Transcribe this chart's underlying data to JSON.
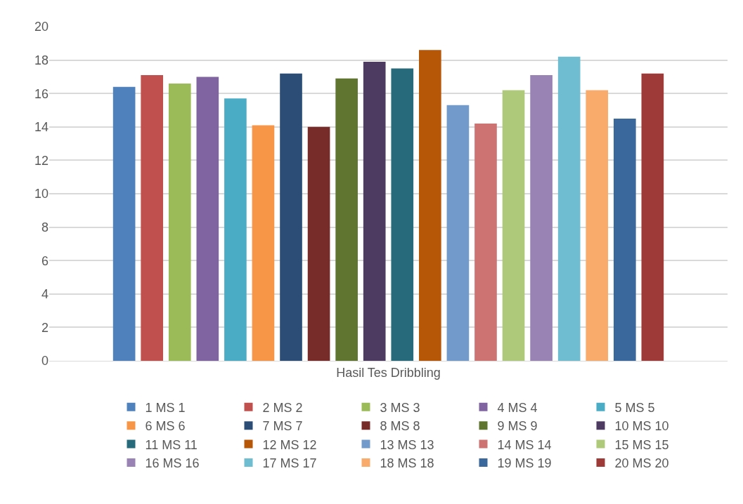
{
  "chart_data": {
    "type": "bar",
    "categories": [
      "Hasil Tes Dribbling"
    ],
    "series": [
      {
        "name": "1 MS 1",
        "color": "#4f81bd",
        "values": [
          16.4
        ]
      },
      {
        "name": "2 MS 2",
        "color": "#c0504d",
        "values": [
          17.1
        ]
      },
      {
        "name": "3 MS 3",
        "color": "#9bbb59",
        "values": [
          16.6
        ]
      },
      {
        "name": "4 MS 4",
        "color": "#8064a2",
        "values": [
          17.0
        ]
      },
      {
        "name": "5 MS 5",
        "color": "#4bacc6",
        "values": [
          15.7
        ]
      },
      {
        "name": "6 MS 6",
        "color": "#f79646",
        "values": [
          14.1
        ]
      },
      {
        "name": "7 MS 7",
        "color": "#2c4d75",
        "values": [
          17.2
        ]
      },
      {
        "name": "8 MS 8",
        "color": "#772c2a",
        "values": [
          14.0
        ]
      },
      {
        "name": "9 MS 9",
        "color": "#5f7530",
        "values": [
          16.9
        ]
      },
      {
        "name": "10 MS 10",
        "color": "#4d3b62",
        "values": [
          17.9
        ]
      },
      {
        "name": "11 MS 11",
        "color": "#276a7c",
        "values": [
          17.5
        ]
      },
      {
        "name": "12 MS 12",
        "color": "#b65708",
        "values": [
          18.6
        ]
      },
      {
        "name": "13 MS 13",
        "color": "#729aca",
        "values": [
          15.3
        ]
      },
      {
        "name": "14 MS 14",
        "color": "#cd7371",
        "values": [
          14.2
        ]
      },
      {
        "name": "15 MS 15",
        "color": "#afc97a",
        "values": [
          16.2
        ]
      },
      {
        "name": "16 MS 16",
        "color": "#9983b5",
        "values": [
          17.1
        ]
      },
      {
        "name": "17 MS 17",
        "color": "#6fbdd1",
        "values": [
          18.2
        ]
      },
      {
        "name": "18 MS 18",
        "color": "#f9ab6b",
        "values": [
          16.2
        ]
      },
      {
        "name": "19 MS 19",
        "color": "#3a679c",
        "values": [
          14.5
        ]
      },
      {
        "name": "20 MS 20",
        "color": "#9e3a38",
        "values": [
          17.2
        ]
      }
    ],
    "ylim": [
      0,
      20
    ],
    "yticks": [
      0,
      2,
      4,
      6,
      8,
      10,
      12,
      14,
      16,
      18,
      20
    ],
    "grid": "y",
    "legend": "bottom"
  }
}
